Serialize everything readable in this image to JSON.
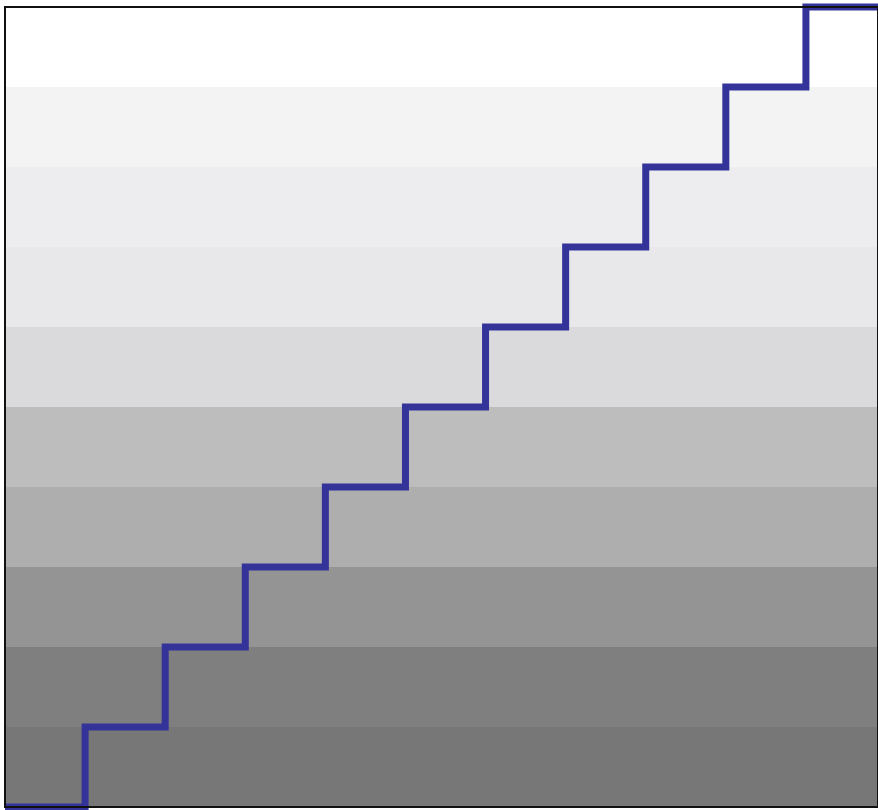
{
  "chart_data": {
    "type": "line",
    "step": "post",
    "title": "",
    "xlabel": "",
    "ylabel": "",
    "grid": false,
    "legend": "none",
    "xlim": [
      0,
      10.9
    ],
    "ylim": [
      0,
      10
    ],
    "x": [
      0,
      1,
      2,
      3,
      4,
      5,
      6,
      7,
      8,
      9,
      10
    ],
    "series": [
      {
        "color": "#333399",
        "values": [
          0,
          1,
          2,
          3,
          4,
          5,
          6,
          7,
          8,
          9,
          10
        ]
      }
    ],
    "bands": [
      {
        "from": 0,
        "to": 1,
        "color": "#777777"
      },
      {
        "from": 1,
        "to": 2,
        "color": "#7f7f7f"
      },
      {
        "from": 2,
        "to": 3,
        "color": "#949494"
      },
      {
        "from": 3,
        "to": 4,
        "color": "#aeaeae"
      },
      {
        "from": 4,
        "to": 5,
        "color": "#bdbdbd"
      },
      {
        "from": 5,
        "to": 6,
        "color": "#dadadc"
      },
      {
        "from": 6,
        "to": 7,
        "color": "#e8e8ea"
      },
      {
        "from": 7,
        "to": 8,
        "color": "#ededef"
      },
      {
        "from": 8,
        "to": 9,
        "color": "#f3f3f4"
      },
      {
        "from": 9,
        "to": 10,
        "color": "#ffffff"
      }
    ],
    "frame_color": "#111111"
  }
}
